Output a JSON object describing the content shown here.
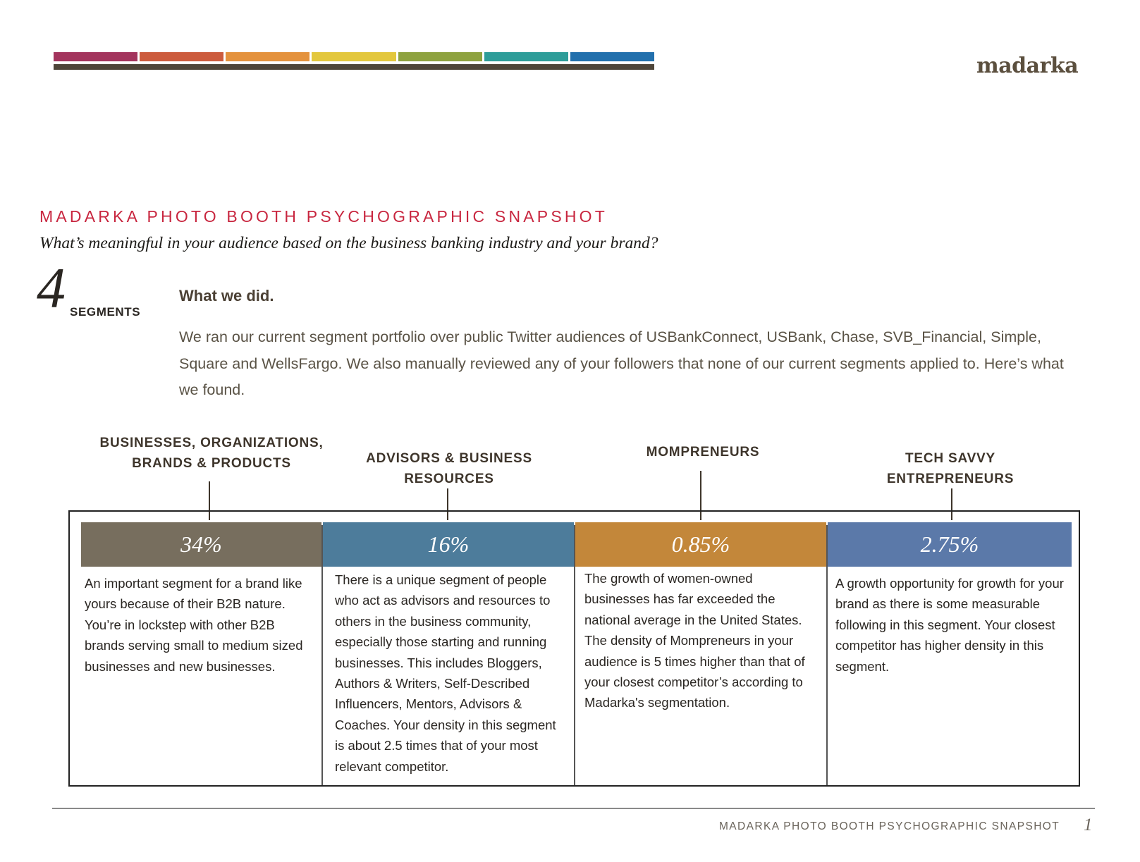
{
  "brand": {
    "logo_text": "madarka",
    "stripe_colors": [
      "#a3345d",
      "#cc5b3d",
      "#e4923d",
      "#e3c73d",
      "#8ea23f",
      "#2e9d99",
      "#2270ad"
    ]
  },
  "header": {
    "title": "MADARKA PHOTO BOOTH PSYCHOGRAPHIC SNAPSHOT",
    "subtitle": "What’s meaningful in your audience based on the business banking industry and your brand?"
  },
  "summary": {
    "count": "4",
    "count_label": "SEGMENTS",
    "heading": "What we did.",
    "body": "We ran our current segment portfolio over public Twitter audiences of USBankConnect, USBank, Chase, SVB_Financial, Simple, Square and WellsFargo.  We also manually reviewed any of your followers that none of our current segments applied to.  Here’s what we found."
  },
  "segments": [
    {
      "name_line1": "BUSINESSES, ORGANIZATIONS,",
      "name_line2": "BRANDS & PRODUCTS",
      "percent": "34%",
      "percent_value": 34,
      "color": "#776e5e",
      "description": "An important segment for a brand like yours because of their B2B nature. You’re in lockstep with other B2B brands serving small to medium sized businesses and new businesses."
    },
    {
      "name_line1": "ADVISORS & BUSINESS",
      "name_line2": "RESOURCES",
      "percent": "16%",
      "percent_value": 16,
      "color": "#4d7c9b",
      "description": "There is a unique segment of people who act as advisors and resources to others in the business community, especially those starting and running businesses. This includes Bloggers, Authors & Writers, Self-Described Influencers, Mentors, Advisors & Coaches.  Your density in this segment is about 2.5 times that of your most relevant competitor."
    },
    {
      "name_line1": "MOMPRENEURS",
      "name_line2": "",
      "percent": "0.85%",
      "percent_value": 0.85,
      "color": "#c3873a",
      "description": "The growth of women-owned businesses has far exceeded the national average in the United States. The density of Mompreneurs in your audience is 5 times higher than that of your closest competitor’s according to Madarka's segmentation."
    },
    {
      "name_line1": "TECH SAVVY",
      "name_line2": "ENTREPRENEURS",
      "percent": "2.75%",
      "percent_value": 2.75,
      "color": "#5b79a9",
      "description": " A growth opportunity for growth for your brand as there is some measurable following in this segment. Your closest competitor has higher density in this segment."
    }
  ],
  "footer": {
    "title": "MADARKA PHOTO BOOTH PSYCHOGRAPHIC SNAPSHOT",
    "page_number": "1"
  }
}
